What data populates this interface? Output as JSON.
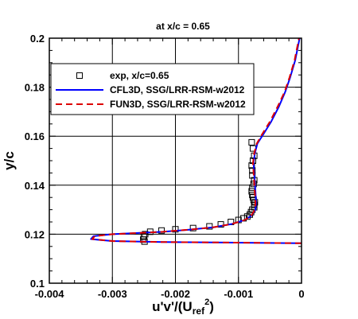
{
  "chart_data": {
    "type": "line",
    "title": "at x/c = 0.65",
    "xlabel": {
      "base": "u'v'/(U",
      "sub": "ref",
      "sup": "2",
      "close": ")"
    },
    "ylabel": "y/c",
    "xlim": [
      -0.004,
      0
    ],
    "ylim": [
      0.1,
      0.2
    ],
    "x_ticks": [
      -0.004,
      -0.003,
      -0.002,
      -0.001,
      0
    ],
    "x_tick_labels": [
      "-0.004",
      "-0.003",
      "-0.002",
      "-0.001",
      "0"
    ],
    "x_minor_step": 0.0002,
    "y_ticks": [
      0.1,
      0.12,
      0.14,
      0.16,
      0.18,
      0.2
    ],
    "y_tick_labels": [
      "0.1",
      "0.12",
      "0.14",
      "0.16",
      "0.18",
      "0.2"
    ],
    "y_minor_step": 0.005,
    "grid": true,
    "legend_position": "top-left",
    "series": [
      {
        "name": "exp, x/c=0.65",
        "style": "markers",
        "color": "#000000",
        "x": [
          -0.00249,
          -0.00251,
          -0.0025,
          -0.00248,
          -0.0024,
          -0.00222,
          -0.002,
          -0.00172,
          -0.00146,
          -0.00128,
          -0.00112,
          -0.001,
          -0.00092,
          -0.00086,
          -0.00082,
          -0.0008,
          -0.00078,
          -0.00075,
          -0.00075,
          -0.00074,
          -0.00076,
          -0.00077,
          -0.00078,
          -0.00079,
          -0.00078,
          -0.00076,
          -0.00075,
          -0.00078,
          -0.00078,
          -0.00079,
          -0.00077,
          -0.00075,
          -0.00077,
          -0.00079
        ],
        "y": [
          0.117,
          0.1178,
          0.119,
          0.12,
          0.121,
          0.1215,
          0.122,
          0.1225,
          0.1232,
          0.124,
          0.125,
          0.1258,
          0.1265,
          0.1272,
          0.128,
          0.129,
          0.13,
          0.131,
          0.132,
          0.133,
          0.134,
          0.135,
          0.136,
          0.1375,
          0.139,
          0.1405,
          0.142,
          0.144,
          0.146,
          0.148,
          0.15,
          0.152,
          0.155,
          0.1575
        ]
      },
      {
        "name": "CFL3D, SSG/LRR-RSM-w2012",
        "style": "solid",
        "color": "#0000ff",
        "x": [
          0,
          -0.0004,
          -0.0012,
          -0.0022,
          -0.003,
          -0.00334,
          -0.0033,
          -0.003,
          -0.0026,
          -0.0022,
          -0.0018,
          -0.0014,
          -0.0011,
          -0.0009,
          -0.0008,
          -0.00073,
          -0.00072,
          -0.00073,
          -0.00074,
          -0.00075,
          -0.00076,
          -0.00074,
          -0.0007,
          -0.0006,
          -0.00048,
          -0.00036,
          -0.00026,
          -0.00018,
          -0.0001,
          -3e-05
        ],
        "y": [
          0.1163,
          0.1164,
          0.1166,
          0.1168,
          0.1172,
          0.118,
          0.1192,
          0.12,
          0.1205,
          0.121,
          0.1218,
          0.1228,
          0.1242,
          0.1258,
          0.1275,
          0.13,
          0.133,
          0.137,
          0.141,
          0.145,
          0.149,
          0.153,
          0.157,
          0.161,
          0.166,
          0.172,
          0.178,
          0.184,
          0.191,
          0.2
        ]
      },
      {
        "name": "FUN3D, SSG/LRR-RSM-w2012",
        "style": "dashed",
        "color": "#dd0000",
        "x": [
          0,
          -0.0004,
          -0.0012,
          -0.0022,
          -0.003,
          -0.00332,
          -0.00328,
          -0.003,
          -0.0026,
          -0.0022,
          -0.0018,
          -0.0014,
          -0.0011,
          -0.0009,
          -0.0008,
          -0.00074,
          -0.00073,
          -0.00074,
          -0.00075,
          -0.00076,
          -0.00077,
          -0.00075,
          -0.00071,
          -0.00062,
          -0.0005,
          -0.00038,
          -0.00027,
          -0.00019,
          -0.00011,
          -4e-05
        ],
        "y": [
          0.1163,
          0.1164,
          0.1166,
          0.1168,
          0.1172,
          0.118,
          0.1192,
          0.12,
          0.1205,
          0.121,
          0.1218,
          0.1228,
          0.1242,
          0.1258,
          0.1275,
          0.13,
          0.133,
          0.137,
          0.141,
          0.145,
          0.149,
          0.153,
          0.157,
          0.161,
          0.166,
          0.172,
          0.178,
          0.184,
          0.191,
          0.2
        ]
      }
    ]
  }
}
